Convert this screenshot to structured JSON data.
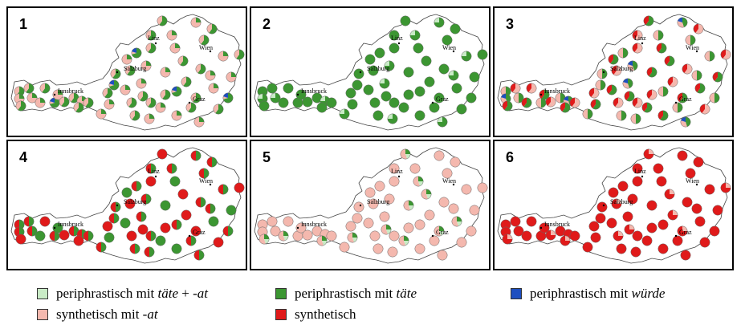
{
  "colors": {
    "periphrastic_taete_at": "#c9ebc6",
    "periphrastic_taete": "#3c9632",
    "periphrastic_wuerde": "#1e4fc0",
    "synthetic_at": "#f4b8ae",
    "synthetic": "#e01a1a"
  },
  "cities": {
    "linz": "Linz",
    "wien": "Wien",
    "salzburg": "Salzburg",
    "innsbruck": "Innsbruck",
    "graz": "Graz"
  },
  "panels": [
    {
      "number": "1",
      "dominant": "mixed_green_pink",
      "has_wuerde": true
    },
    {
      "number": "2",
      "dominant": "green",
      "has_wuerde": true
    },
    {
      "number": "3",
      "dominant": "mixed_all",
      "has_wuerde": true
    },
    {
      "number": "4",
      "dominant": "mixed_red_green",
      "has_wuerde": true
    },
    {
      "number": "5",
      "dominant": "pink",
      "has_wuerde": true
    },
    {
      "number": "6",
      "dominant": "red",
      "has_wuerde": false
    }
  ],
  "legend": {
    "item1": {
      "prefix": "periphrastisch mit ",
      "italic": "täte",
      "suffix": " + -",
      "italic2": "at"
    },
    "item2": {
      "prefix": "periphrastisch mit ",
      "italic": "täte"
    },
    "item3": {
      "prefix": "periphrastisch mit ",
      "italic": "würde"
    },
    "item4": {
      "prefix": "synthetisch mit -",
      "italic": "at"
    },
    "item5": {
      "text": "synthetisch"
    }
  }
}
